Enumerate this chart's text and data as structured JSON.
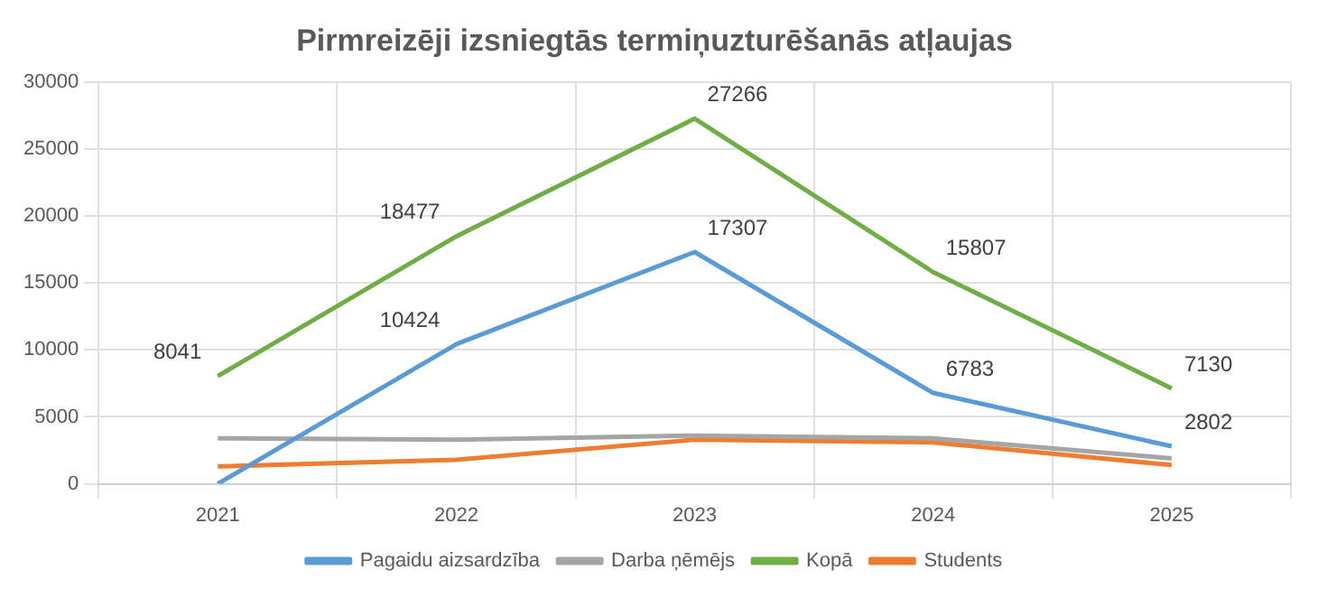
{
  "chart_data": {
    "type": "line",
    "title": "Pirmreizēji izsniegtās termiņuzturēšanās atļaujas",
    "categories": [
      "2021",
      "2022",
      "2023",
      "2024",
      "2025"
    ],
    "series": [
      {
        "name": "Pagaidu aizsardzība",
        "color": "#5b9bd5",
        "values": [
          0,
          10424,
          17307,
          6783,
          2802
        ],
        "value_labels": [
          null,
          "10424",
          "17307",
          "6783",
          "2802"
        ]
      },
      {
        "name": "Darba ņēmējs",
        "color": "#a5a5a5",
        "values": [
          3400,
          3300,
          3600,
          3400,
          1900
        ]
      },
      {
        "name": "Kopā",
        "color": "#70ad47",
        "values": [
          8041,
          18477,
          27266,
          15807,
          7130
        ],
        "value_labels": [
          "8041",
          "18477",
          "27266",
          "15807",
          "7130"
        ]
      },
      {
        "name": "Students",
        "color": "#ed7d31",
        "values": [
          1300,
          1800,
          3300,
          3100,
          1400
        ]
      }
    ],
    "ylim": [
      0,
      30000
    ],
    "yticks": [
      0,
      5000,
      10000,
      15000,
      20000,
      25000,
      30000
    ],
    "grid": true,
    "legend": "bottom",
    "marker": "none",
    "line_style": "solid"
  }
}
